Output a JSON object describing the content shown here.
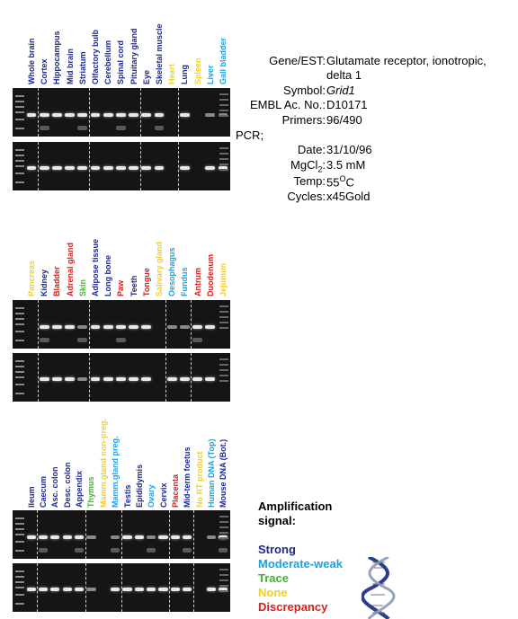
{
  "colors": {
    "strong": "#1c2a8c",
    "moderate_weak": "#1fa0e0",
    "trace": "#3fb52a",
    "none": "#f2cf2e",
    "discrepancy": "#d71d1d"
  },
  "info": {
    "gene_label": "Gene/EST:",
    "gene_value_line1": "Glutamate receptor, ionotropic,",
    "gene_value_line2": "delta 1",
    "symbol_label": "Symbol:",
    "symbol_value": "Grid1",
    "embl_label": "EMBL Ac. No.:",
    "embl_value": "D10171",
    "primers_label": "Primers:",
    "primers_value": "96/490",
    "pcr_label": "PCR;",
    "date_label": "Date:",
    "date_value": "31/10/96",
    "mgcl_label": "MgCl",
    "mgcl_sub": "2",
    "mgcl_colon": ":",
    "mgcl_value": "3.5 mM",
    "temp_label": "Temp:",
    "temp_value": "55",
    "temp_sup": "O",
    "temp_unit": "C",
    "cycles_label": "Cycles:",
    "cycles_value": "x45Gold"
  },
  "panels": [
    {
      "lanes": [
        {
          "label": "Whole brain",
          "signal": "strong"
        },
        {
          "label": "Cortex",
          "signal": "strong"
        },
        {
          "label": "Hippocampus",
          "signal": "strong"
        },
        {
          "label": "Mid brain",
          "signal": "strong"
        },
        {
          "label": "Striatum",
          "signal": "strong"
        },
        {
          "label": "Olfactory bulb",
          "signal": "strong"
        },
        {
          "label": "Cerebellum",
          "signal": "strong"
        },
        {
          "label": "Spinal cord",
          "signal": "strong"
        },
        {
          "label": "Pituitary gland",
          "signal": "strong"
        },
        {
          "label": "Eye",
          "signal": "strong"
        },
        {
          "label": "Skeletal muscle",
          "signal": "strong"
        },
        {
          "label": "Heart",
          "signal": "none"
        },
        {
          "label": "Lung",
          "signal": "strong"
        },
        {
          "label": "Spleen",
          "signal": "none"
        },
        {
          "label": "Liver",
          "signal": "moderate_weak"
        },
        {
          "label": "Gall bladder",
          "signal": "moderate_weak"
        }
      ]
    },
    {
      "lanes": [
        {
          "label": "Pancreas",
          "signal": "none"
        },
        {
          "label": "Kidney",
          "signal": "strong"
        },
        {
          "label": "Bladder",
          "signal": "discrepancy"
        },
        {
          "label": "Adrenal gland",
          "signal": "discrepancy"
        },
        {
          "label": "Skin",
          "signal": "trace"
        },
        {
          "label": "Adipose tissue",
          "signal": "strong"
        },
        {
          "label": "Long bone",
          "signal": "strong"
        },
        {
          "label": "Paw",
          "signal": "discrepancy"
        },
        {
          "label": "Teeth",
          "signal": "strong"
        },
        {
          "label": "Tongue",
          "signal": "discrepancy"
        },
        {
          "label": "Salivary gland",
          "signal": "none"
        },
        {
          "label": "Oesophagus",
          "signal": "moderate_weak"
        },
        {
          "label": "Fundus",
          "signal": "moderate_weak"
        },
        {
          "label": "Antrum",
          "signal": "discrepancy"
        },
        {
          "label": "Duodenum",
          "signal": "discrepancy"
        },
        {
          "label": "Jejunum",
          "signal": "none"
        }
      ]
    },
    {
      "lanes": [
        {
          "label": "Ileum",
          "signal": "strong"
        },
        {
          "label": "Caecum",
          "signal": "strong"
        },
        {
          "label": "Asc. colon",
          "signal": "strong"
        },
        {
          "label": "Desc. colon",
          "signal": "strong"
        },
        {
          "label": "Appendix",
          "signal": "strong"
        },
        {
          "label": "Thymus",
          "signal": "trace"
        },
        {
          "label": "Mamm.gland non-preg.",
          "signal": "none"
        },
        {
          "label": "Mamm.gland preg.",
          "signal": "moderate_weak"
        },
        {
          "label": "Testis",
          "signal": "strong"
        },
        {
          "label": "Epididymis",
          "signal": "strong"
        },
        {
          "label": "Ovary",
          "signal": "moderate_weak"
        },
        {
          "label": "Cervix",
          "signal": "strong"
        },
        {
          "label": "Placenta",
          "signal": "discrepancy"
        },
        {
          "label": "Mid-term foetus",
          "signal": "strong"
        },
        {
          "label": "No RT product",
          "signal": "none"
        },
        {
          "label": "Human DNA (Top)",
          "signal": "moderate_weak"
        },
        {
          "label": "Mouse DNA (Bot.)",
          "signal": "strong"
        }
      ]
    }
  ],
  "legend": {
    "title_line1": "Amplification",
    "title_line2": "signal:",
    "items": [
      {
        "label": "Strong",
        "signal": "strong"
      },
      {
        "label": "Moderate-weak",
        "signal": "moderate_weak"
      },
      {
        "label": "Trace",
        "signal": "trace"
      },
      {
        "label": "None",
        "signal": "none"
      },
      {
        "label": "Discrepancy",
        "signal": "discrepancy"
      }
    ]
  }
}
